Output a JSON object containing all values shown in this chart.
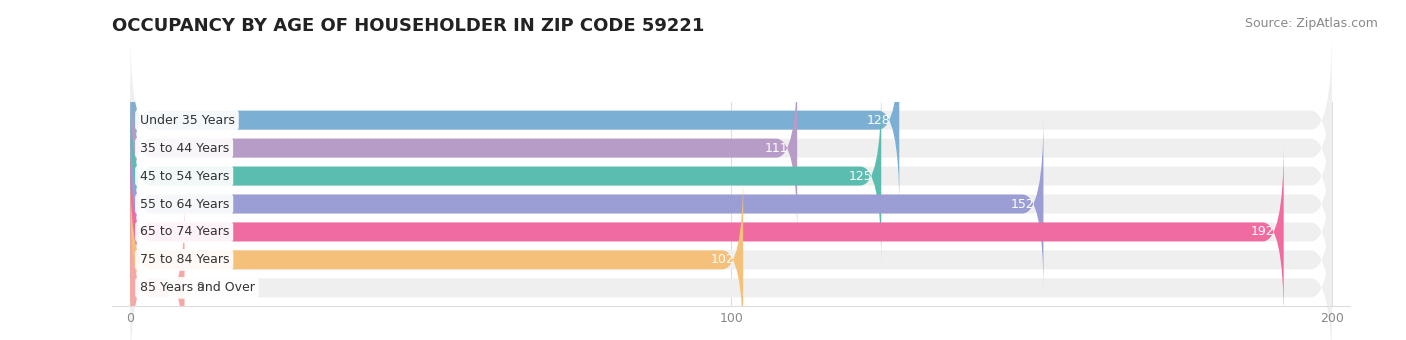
{
  "title": "OCCUPANCY BY AGE OF HOUSEHOLDER IN ZIP CODE 59221",
  "source": "Source: ZipAtlas.com",
  "categories": [
    "Under 35 Years",
    "35 to 44 Years",
    "45 to 54 Years",
    "55 to 64 Years",
    "65 to 74 Years",
    "75 to 84 Years",
    "85 Years and Over"
  ],
  "values": [
    128,
    111,
    125,
    152,
    192,
    102,
    9
  ],
  "bar_colors": [
    "#7BAFD4",
    "#B89CC8",
    "#5BBCB0",
    "#9B9ED4",
    "#F06CA0",
    "#F5C07A",
    "#F4A8A8"
  ],
  "bar_bg_color": "#EFEFEF",
  "xlim_min": 0,
  "xlim_max": 200,
  "title_fontsize": 13,
  "source_fontsize": 9,
  "label_fontsize": 9,
  "value_fontsize": 9,
  "bar_height": 0.68,
  "fig_bg_color": "#FFFFFF",
  "grid_color": "#DDDDDD",
  "tick_color": "#888888"
}
